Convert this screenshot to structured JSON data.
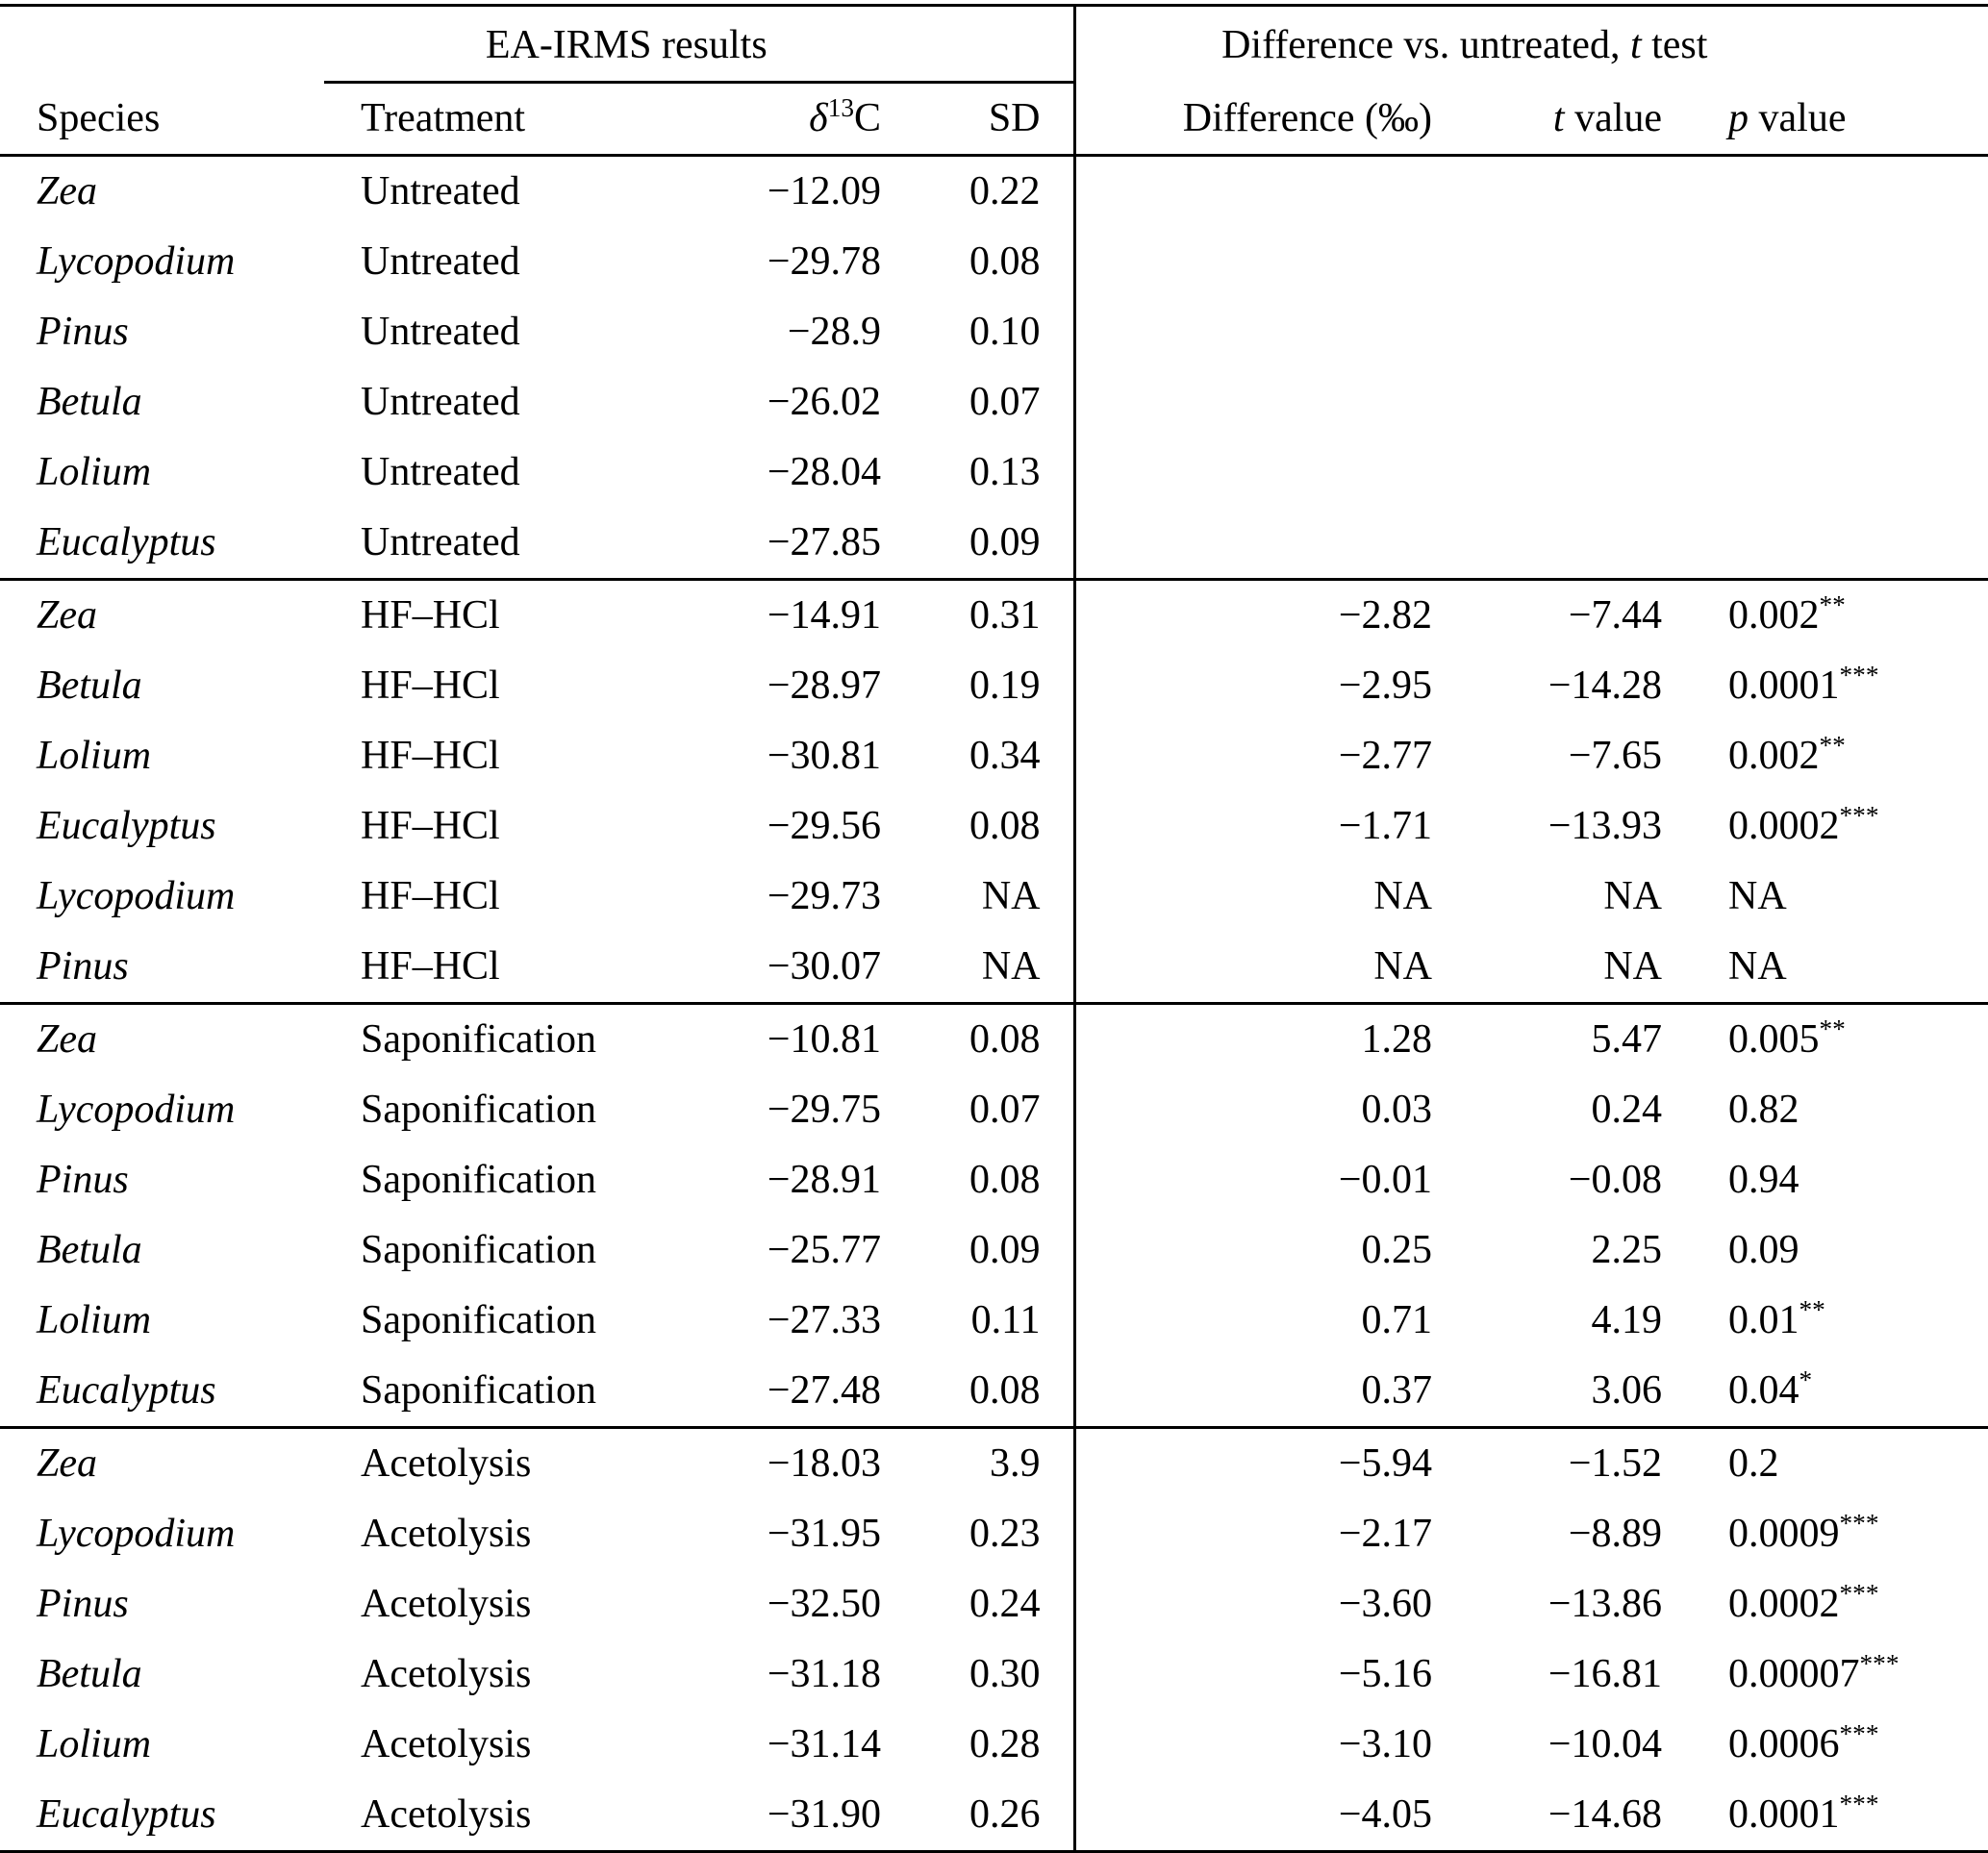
{
  "table": {
    "group_headers": {
      "left": "EA-IRMS results",
      "right": {
        "pre": "Difference vs. untreated, ",
        "italic": "t",
        "post": " test"
      }
    },
    "columns": {
      "species": "Species",
      "treatment": "Treatment",
      "d13c": {
        "pre": "δ",
        "sup": "13",
        "post": "C"
      },
      "sd": "SD",
      "difference": "Difference (‰)",
      "t": {
        "italic": "t",
        "post": " value"
      },
      "p": {
        "italic": "p",
        "post": " value"
      }
    },
    "groups": [
      {
        "treatment": "Untreated",
        "rows": [
          [
            "Zea",
            "Untreated",
            "−12.09",
            "0.22",
            "",
            "",
            ""
          ],
          [
            "Lycopodium",
            "Untreated",
            "−29.78",
            "0.08",
            "",
            "",
            ""
          ],
          [
            "Pinus",
            "Untreated",
            "−28.9",
            "0.10",
            "",
            "",
            ""
          ],
          [
            "Betula",
            "Untreated",
            "−26.02",
            "0.07",
            "",
            "",
            ""
          ],
          [
            "Lolium",
            "Untreated",
            "−28.04",
            "0.13",
            "",
            "",
            ""
          ],
          [
            "Eucalyptus",
            "Untreated",
            "−27.85",
            "0.09",
            "",
            "",
            ""
          ]
        ]
      },
      {
        "treatment": "HF–HCl",
        "rows": [
          [
            "Zea",
            "HF–HCl",
            "−14.91",
            "0.31",
            "−2.82",
            "−7.44",
            "0.002**"
          ],
          [
            "Betula",
            "HF–HCl",
            "−28.97",
            "0.19",
            "−2.95",
            "−14.28",
            "0.0001***"
          ],
          [
            "Lolium",
            "HF–HCl",
            "−30.81",
            "0.34",
            "−2.77",
            "−7.65",
            "0.002**"
          ],
          [
            "Eucalyptus",
            "HF–HCl",
            "−29.56",
            "0.08",
            "−1.71",
            "−13.93",
            "0.0002***"
          ],
          [
            "Lycopodium",
            "HF–HCl",
            "−29.73",
            "NA",
            "NA",
            "NA",
            "NA"
          ],
          [
            "Pinus",
            "HF–HCl",
            "−30.07",
            "NA",
            "NA",
            "NA",
            "NA"
          ]
        ]
      },
      {
        "treatment": "Saponification",
        "rows": [
          [
            "Zea",
            "Saponification",
            "−10.81",
            "0.08",
            "1.28",
            "5.47",
            "0.005**"
          ],
          [
            "Lycopodium",
            "Saponification",
            "−29.75",
            "0.07",
            "0.03",
            "0.24",
            "0.82"
          ],
          [
            "Pinus",
            "Saponification",
            "−28.91",
            "0.08",
            "−0.01",
            "−0.08",
            "0.94"
          ],
          [
            "Betula",
            "Saponification",
            "−25.77",
            "0.09",
            "0.25",
            "2.25",
            "0.09"
          ],
          [
            "Lolium",
            "Saponification",
            "−27.33",
            "0.11",
            "0.71",
            "4.19",
            "0.01**"
          ],
          [
            "Eucalyptus",
            "Saponification",
            "−27.48",
            "0.08",
            "0.37",
            "3.06",
            "0.04*"
          ]
        ]
      },
      {
        "treatment": "Acetolysis",
        "rows": [
          [
            "Zea",
            "Acetolysis",
            "−18.03",
            "3.9",
            "−5.94",
            "−1.52",
            "0.2"
          ],
          [
            "Lycopodium",
            "Acetolysis",
            "−31.95",
            "0.23",
            "−2.17",
            "−8.89",
            "0.0009***"
          ],
          [
            "Pinus",
            "Acetolysis",
            "−32.50",
            "0.24",
            "−3.60",
            "−13.86",
            "0.0002***"
          ],
          [
            "Betula",
            "Acetolysis",
            "−31.18",
            "0.30",
            "−5.16",
            "−16.81",
            "0.00007***"
          ],
          [
            "Lolium",
            "Acetolysis",
            "−31.14",
            "0.28",
            "−3.10",
            "−10.04",
            "0.0006***"
          ],
          [
            "Eucalyptus",
            "Acetolysis",
            "−31.90",
            "0.26",
            "−4.05",
            "−14.68",
            "0.0001***"
          ]
        ]
      }
    ]
  }
}
